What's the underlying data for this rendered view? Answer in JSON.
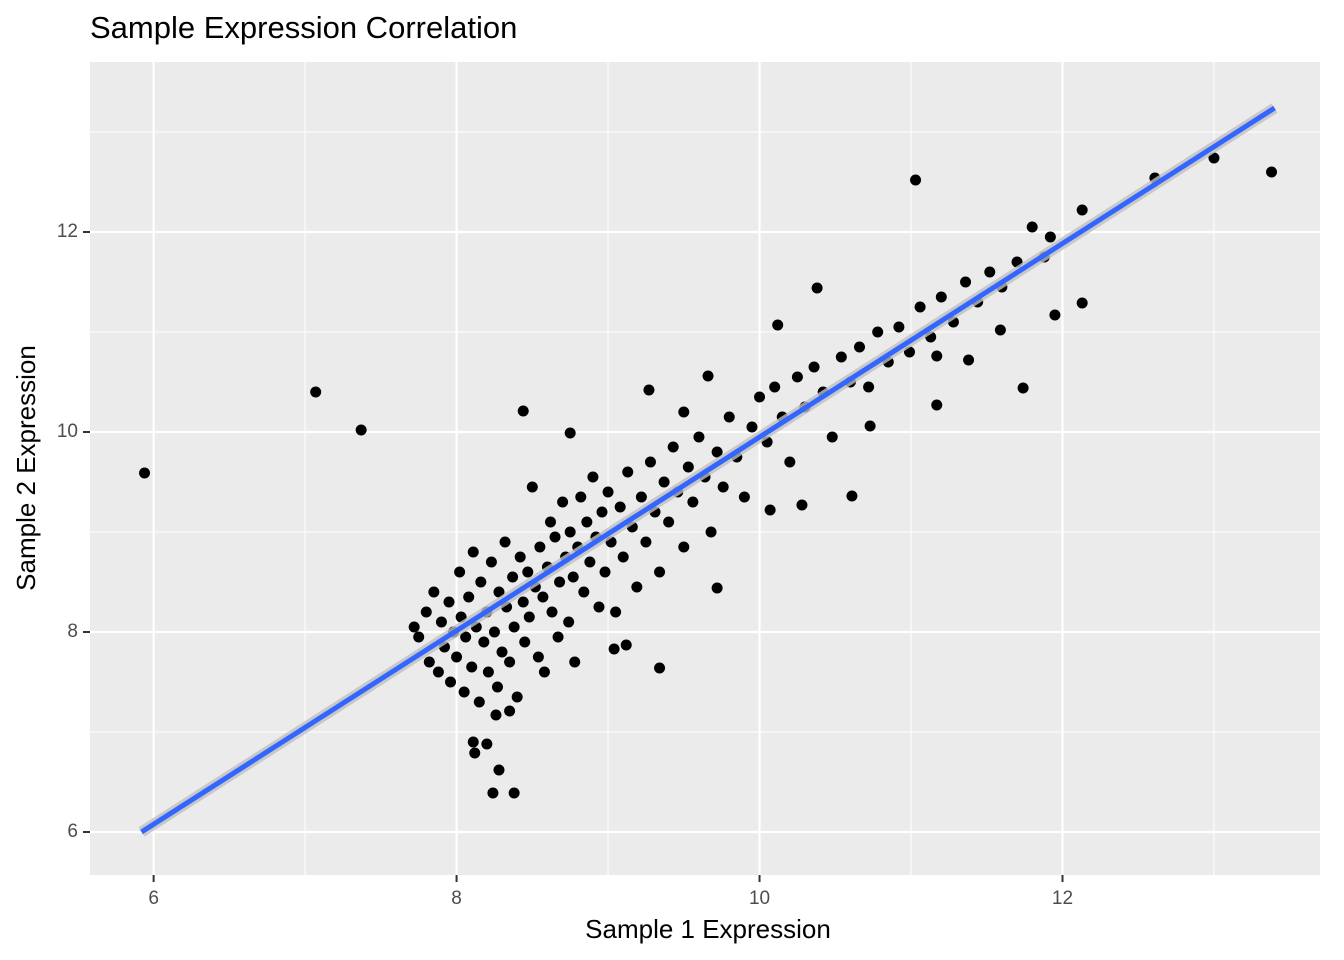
{
  "chart_data": {
    "type": "scatter",
    "title": "Sample Expression Correlation",
    "x_label": "Sample 1 Expression",
    "y_label": "Sample 2 Expression",
    "color": "#000000",
    "x": [
      5.94,
      7.07,
      7.37,
      11.03,
      13.0,
      13.38,
      12.61,
      12.13,
      12.13,
      11.95,
      11.74,
      11.59,
      11.38,
      11.17,
      11.17,
      10.73,
      10.61,
      10.38,
      10.12,
      9.66,
      9.27,
      9.5,
      8.75,
      8.44,
      9.34,
      9.04,
      9.12,
      8.11,
      8.12,
      8.2,
      8.28,
      8.24,
      8.38,
      8.26,
      8.35,
      9.72,
      10.28,
      10.07,
      7.72,
      7.75,
      7.8,
      7.82,
      7.85,
      7.88,
      7.9,
      7.92,
      7.95,
      7.96,
      7.98,
      8.0,
      8.02,
      8.03,
      8.05,
      8.06,
      8.08,
      8.1,
      8.11,
      8.13,
      8.15,
      8.16,
      8.18,
      8.2,
      8.21,
      8.23,
      8.25,
      8.27,
      8.28,
      8.3,
      8.32,
      8.33,
      8.35,
      8.37,
      8.38,
      8.4,
      8.42,
      8.44,
      8.45,
      8.47,
      8.48,
      8.5,
      8.52,
      8.54,
      8.55,
      8.57,
      8.58,
      8.6,
      8.62,
      8.63,
      8.65,
      8.67,
      8.68,
      8.7,
      8.72,
      8.74,
      8.75,
      8.77,
      8.78,
      8.8,
      8.82,
      8.84,
      8.86,
      8.88,
      8.9,
      8.92,
      8.94,
      8.96,
      8.98,
      9.0,
      9.02,
      9.05,
      9.08,
      9.1,
      9.13,
      9.16,
      9.19,
      9.22,
      9.25,
      9.28,
      9.31,
      9.34,
      9.37,
      9.4,
      9.43,
      9.46,
      9.5,
      9.53,
      9.56,
      9.6,
      9.64,
      9.68,
      9.72,
      9.76,
      9.8,
      9.85,
      9.9,
      9.95,
      10.0,
      10.05,
      10.1,
      10.15,
      10.2,
      10.25,
      10.3,
      10.36,
      10.42,
      10.48,
      10.54,
      10.6,
      10.66,
      10.72,
      10.78,
      10.85,
      10.92,
      10.99,
      11.06,
      11.13,
      11.2,
      11.28,
      11.36,
      11.44,
      11.52,
      11.6,
      11.7,
      11.8,
      11.88,
      11.92
    ],
    "values": [
      9.59,
      10.4,
      10.02,
      12.52,
      12.74,
      12.6,
      12.54,
      12.22,
      11.29,
      11.17,
      10.44,
      11.02,
      10.72,
      10.76,
      10.27,
      10.06,
      9.36,
      11.44,
      11.07,
      10.56,
      10.42,
      10.2,
      9.99,
      10.21,
      7.64,
      7.83,
      7.87,
      6.9,
      6.79,
      6.88,
      6.62,
      6.39,
      6.39,
      7.17,
      7.21,
      8.44,
      9.27,
      9.22,
      8.05,
      7.95,
      8.2,
      7.7,
      8.4,
      7.6,
      8.1,
      7.85,
      8.3,
      7.5,
      8.0,
      7.75,
      8.6,
      8.15,
      7.4,
      7.95,
      8.35,
      7.65,
      8.8,
      8.05,
      7.3,
      8.5,
      7.9,
      8.2,
      7.6,
      8.7,
      8.0,
      7.45,
      8.4,
      7.8,
      8.9,
      8.25,
      7.7,
      8.55,
      8.05,
      7.35,
      8.75,
      8.3,
      7.9,
      8.6,
      8.15,
      9.45,
      8.45,
      7.75,
      8.85,
      8.35,
      7.6,
      8.65,
      9.1,
      8.2,
      8.95,
      7.95,
      8.5,
      9.3,
      8.75,
      8.1,
      9.0,
      8.55,
      7.7,
      8.85,
      9.35,
      8.4,
      9.1,
      8.7,
      9.55,
      8.95,
      8.25,
      9.2,
      8.6,
      9.4,
      8.9,
      8.2,
      9.25,
      8.75,
      9.6,
      9.05,
      8.45,
      9.35,
      8.9,
      9.7,
      9.2,
      8.6,
      9.5,
      9.1,
      9.85,
      9.4,
      8.85,
      9.65,
      9.3,
      9.95,
      9.55,
      9.0,
      9.8,
      9.45,
      10.15,
      9.75,
      9.35,
      10.05,
      10.35,
      9.9,
      10.45,
      10.15,
      9.7,
      10.55,
      10.25,
      10.65,
      10.4,
      9.95,
      10.75,
      10.5,
      10.85,
      10.45,
      11.0,
      10.7,
      11.05,
      10.8,
      11.25,
      10.95,
      11.35,
      11.1,
      11.5,
      11.3,
      11.6,
      11.45,
      11.7,
      12.05,
      11.75,
      11.95
    ],
    "trend_line": {
      "x": [
        5.92,
        13.4
      ],
      "values": [
        6.0,
        13.24
      ],
      "color": "#3366ff"
    },
    "xlim": [
      5.58,
      13.7
    ],
    "ylim": [
      5.57,
      13.7
    ],
    "xticks": [
      6,
      8,
      10,
      12
    ],
    "yticks": [
      6,
      8,
      10,
      12
    ],
    "x_minor_grid": [
      7,
      9,
      11,
      13
    ],
    "y_minor_grid": [
      7,
      9,
      11,
      13
    ],
    "grid": true
  }
}
